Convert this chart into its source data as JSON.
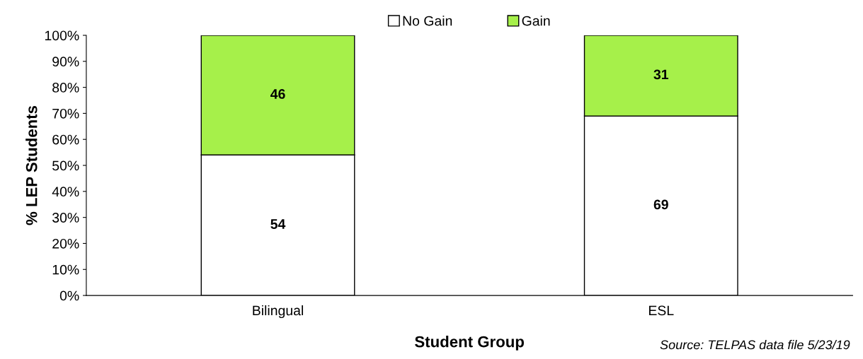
{
  "chart_data": {
    "type": "bar",
    "stacked": true,
    "xlabel": "Student Group",
    "ylabel": "% LEP Students",
    "categories": [
      "Bilingual",
      "ESL"
    ],
    "series": [
      {
        "name": "No Gain",
        "color": "#ffffff",
        "values": [
          54,
          69
        ]
      },
      {
        "name": "Gain",
        "color": "#a6f04a",
        "values": [
          46,
          31
        ]
      }
    ],
    "ylim": [
      0,
      100
    ],
    "yticks": [
      {
        "value": 0,
        "label": "0%"
      },
      {
        "value": 10,
        "label": "10%"
      },
      {
        "value": 20,
        "label": "20%"
      },
      {
        "value": 30,
        "label": "30%"
      },
      {
        "value": 40,
        "label": "40%"
      },
      {
        "value": 50,
        "label": "50%"
      },
      {
        "value": 60,
        "label": "60%"
      },
      {
        "value": 70,
        "label": "70%"
      },
      {
        "value": 80,
        "label": "80%"
      },
      {
        "value": 90,
        "label": "90%"
      },
      {
        "value": 100,
        "label": "100%"
      }
    ],
    "data_labels": true,
    "grid": false,
    "legend": "top",
    "annotations": [
      "Source: TELPAS data file 5/23/19"
    ]
  }
}
